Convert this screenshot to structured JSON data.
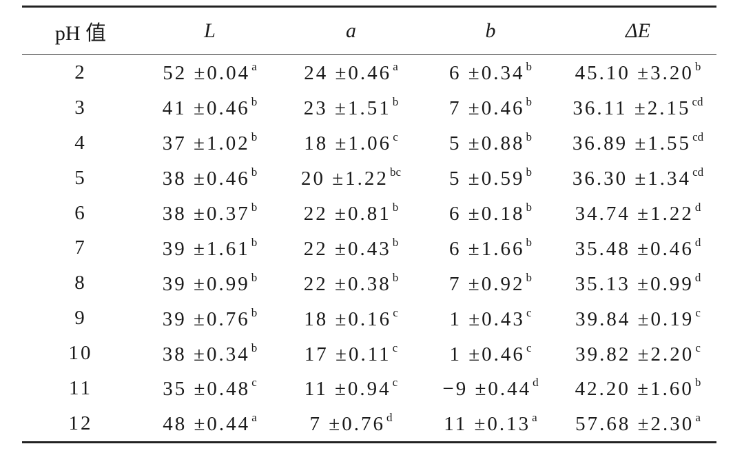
{
  "table": {
    "columns": [
      "pH 值",
      "L",
      "a",
      "b",
      "ΔE"
    ],
    "rows": [
      [
        "2",
        {
          "value": "52 ±0.04",
          "sup": "a"
        },
        {
          "value": "24 ±0.46",
          "sup": "a"
        },
        {
          "value": "6 ±0.34",
          "sup": "b"
        },
        {
          "value": "45.10 ±3.20",
          "sup": "b"
        }
      ],
      [
        "3",
        {
          "value": "41 ±0.46",
          "sup": "b"
        },
        {
          "value": "23 ±1.51",
          "sup": "b"
        },
        {
          "value": "7 ±0.46",
          "sup": "b"
        },
        {
          "value": "36.11 ±2.15",
          "sup": "cd"
        }
      ],
      [
        "4",
        {
          "value": "37 ±1.02",
          "sup": "b"
        },
        {
          "value": "18 ±1.06",
          "sup": "c"
        },
        {
          "value": "5 ±0.88",
          "sup": "b"
        },
        {
          "value": "36.89 ±1.55",
          "sup": "cd"
        }
      ],
      [
        "5",
        {
          "value": "38 ±0.46",
          "sup": "b"
        },
        {
          "value": "20 ±1.22",
          "sup": "bc"
        },
        {
          "value": "5 ±0.59",
          "sup": "b"
        },
        {
          "value": "36.30 ±1.34",
          "sup": "cd"
        }
      ],
      [
        "6",
        {
          "value": "38 ±0.37",
          "sup": "b"
        },
        {
          "value": "22 ±0.81",
          "sup": "b"
        },
        {
          "value": "6 ±0.18",
          "sup": "b"
        },
        {
          "value": "34.74 ±1.22",
          "sup": "d"
        }
      ],
      [
        "7",
        {
          "value": "39 ±1.61",
          "sup": "b"
        },
        {
          "value": "22 ±0.43",
          "sup": "b"
        },
        {
          "value": "6 ±1.66",
          "sup": "b"
        },
        {
          "value": "35.48 ±0.46",
          "sup": "d"
        }
      ],
      [
        "8",
        {
          "value": "39 ±0.99",
          "sup": "b"
        },
        {
          "value": "22 ±0.38",
          "sup": "b"
        },
        {
          "value": "7 ±0.92",
          "sup": "b"
        },
        {
          "value": "35.13 ±0.99",
          "sup": "d"
        }
      ],
      [
        "9",
        {
          "value": "39 ±0.76",
          "sup": "b"
        },
        {
          "value": "18 ±0.16",
          "sup": "c"
        },
        {
          "value": "1 ±0.43",
          "sup": "c"
        },
        {
          "value": "39.84 ±0.19",
          "sup": "c"
        }
      ],
      [
        "10",
        {
          "value": "38 ±0.34",
          "sup": "b"
        },
        {
          "value": "17 ±0.11",
          "sup": "c"
        },
        {
          "value": "1 ±0.46",
          "sup": "c"
        },
        {
          "value": "39.82 ±2.20",
          "sup": "c"
        }
      ],
      [
        "11",
        {
          "value": "35 ±0.48",
          "sup": "c"
        },
        {
          "value": "11 ±0.94",
          "sup": "c"
        },
        {
          "value": "−9 ±0.44",
          "sup": "d"
        },
        {
          "value": "42.20 ±1.60",
          "sup": "b"
        }
      ],
      [
        "12",
        {
          "value": "48 ±0.44",
          "sup": "a"
        },
        {
          "value": "7 ±0.76",
          "sup": "d"
        },
        {
          "value": "11 ±0.13",
          "sup": "a"
        },
        {
          "value": "57.68 ±2.30",
          "sup": "a"
        }
      ]
    ]
  }
}
